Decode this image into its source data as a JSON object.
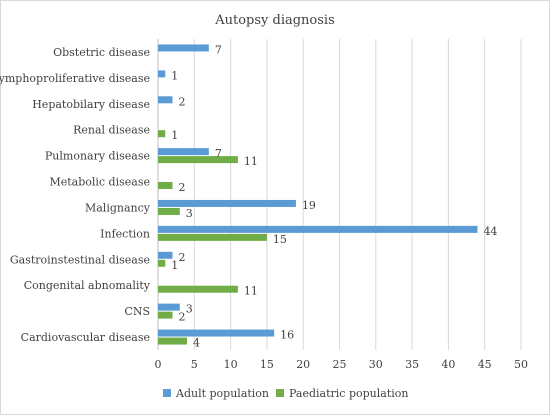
{
  "chart_data": {
    "type": "bar",
    "orientation": "horizontal",
    "title": "Autopsy diagnosis",
    "xlabel": "",
    "ylabel": "",
    "xlim": [
      0,
      50
    ],
    "x_ticks": [
      0,
      5,
      10,
      15,
      20,
      25,
      30,
      35,
      40,
      45,
      50
    ],
    "grid": "vertical",
    "legend_position": "bottom",
    "categories": [
      "Obstetric disease",
      "Lymphoproliferative disease",
      "Hepatobilary disease",
      "Renal disease",
      "Pulmonary disease",
      "Metabolic disease",
      "Malignancy",
      "Infection",
      "Gastroinstestinal disease",
      "Congenital abnomality",
      "CNS",
      "Cardiovascular disease"
    ],
    "series": [
      {
        "name": "Adult population",
        "color": "#5b9bd5",
        "values": [
          7,
          1,
          2,
          null,
          7,
          null,
          19,
          44,
          2,
          null,
          3,
          16
        ]
      },
      {
        "name": "Paediatric population",
        "color": "#70ad47",
        "values": [
          null,
          null,
          null,
          1,
          11,
          2,
          3,
          15,
          1,
          11,
          2,
          4
        ]
      }
    ]
  }
}
